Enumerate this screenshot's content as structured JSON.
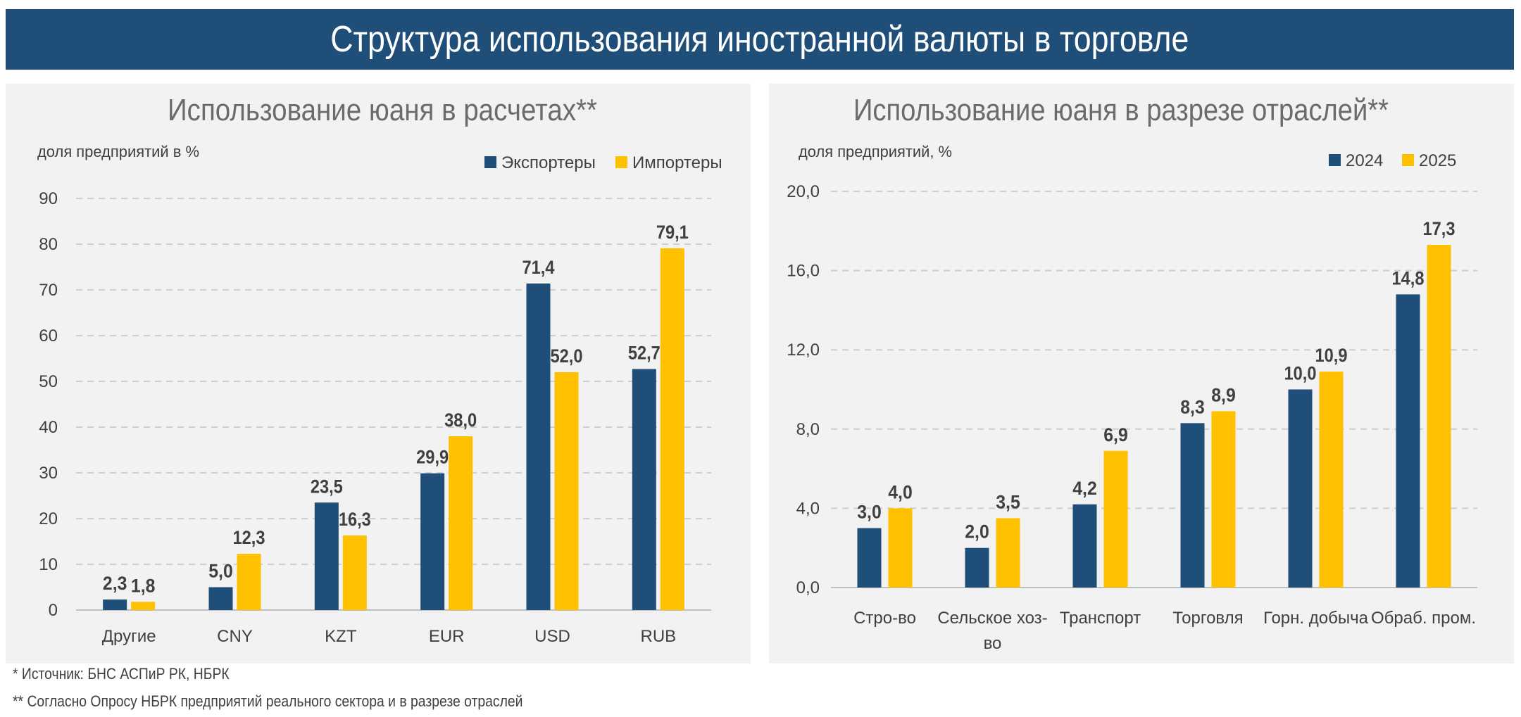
{
  "page_title": "Структура использования иностранной валюты в торговле",
  "footnotes": [
    "* Источник: БНС АСПиР РК, НБРК",
    "** Согласно Опросу НБРК предприятий реального сектора и в разрезе отраслей"
  ],
  "colors": {
    "banner": "#1f4e79",
    "series_dark": "#1f4e79",
    "series_gold": "#ffc000",
    "panel_bg": "#f2f2f2"
  },
  "chart_data": [
    {
      "type": "bar",
      "title": "Использование юаня в расчетах**",
      "ylabel": "доля предприятий в %",
      "categories": [
        "Другие",
        "CNY",
        "KZT",
        "EUR",
        "USD",
        "RUB"
      ],
      "series": [
        {
          "name": "Экспортеры",
          "color": "#1f4e79",
          "values": [
            2.3,
            5.0,
            23.5,
            29.9,
            71.4,
            52.7
          ],
          "labels": [
            "2,3",
            "5,0",
            "23,5",
            "29,9",
            "71,4",
            "52,7"
          ]
        },
        {
          "name": "Импортеры",
          "color": "#ffc000",
          "values": [
            1.8,
            12.3,
            16.3,
            38.0,
            52.0,
            79.1
          ],
          "labels": [
            "1,8",
            "12,3",
            "16,3",
            "38,0",
            "52,0",
            "79,1"
          ]
        }
      ],
      "ylim": [
        0,
        90
      ],
      "yticks": [
        "0",
        "10",
        "20",
        "30",
        "40",
        "50",
        "60",
        "70",
        "80",
        "90"
      ],
      "grid": true,
      "legend": "top-right"
    },
    {
      "type": "bar",
      "title": "Использование юаня в разрезе отраслей**",
      "ylabel": "доля предприятий, %",
      "categories": [
        "Стро-во",
        "Сельское хоз-во",
        "Транспорт",
        "Торговля",
        "Горн. добыча",
        "Обраб. пром."
      ],
      "series": [
        {
          "name": "2024",
          "color": "#1f4e79",
          "values": [
            3.0,
            2.0,
            4.2,
            8.3,
            10.0,
            14.8
          ],
          "labels": [
            "3,0",
            "2,0",
            "4,2",
            "8,3",
            "10,0",
            "14,8"
          ]
        },
        {
          "name": "2025",
          "color": "#ffc000",
          "values": [
            4.0,
            3.5,
            6.9,
            8.9,
            10.9,
            17.3
          ],
          "labels": [
            "4,0",
            "3,5",
            "6,9",
            "8,9",
            "10,9",
            "17,3"
          ]
        }
      ],
      "ylim": [
        0,
        20
      ],
      "yticks": [
        "0,0",
        "4,0",
        "8,0",
        "12,0",
        "16,0",
        "20,0"
      ],
      "grid": true,
      "legend": "top-right"
    }
  ]
}
